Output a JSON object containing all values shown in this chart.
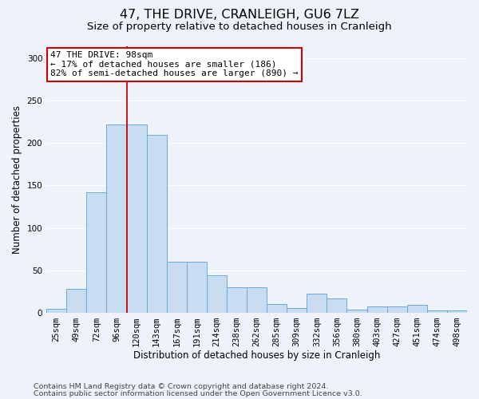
{
  "title": "47, THE DRIVE, CRANLEIGH, GU6 7LZ",
  "subtitle": "Size of property relative to detached houses in Cranleigh",
  "xlabel": "Distribution of detached houses by size in Cranleigh",
  "ylabel": "Number of detached properties",
  "categories": [
    "25sqm",
    "49sqm",
    "72sqm",
    "96sqm",
    "120sqm",
    "143sqm",
    "167sqm",
    "191sqm",
    "214sqm",
    "238sqm",
    "262sqm",
    "285sqm",
    "309sqm",
    "332sqm",
    "356sqm",
    "380sqm",
    "403sqm",
    "427sqm",
    "451sqm",
    "474sqm",
    "498sqm"
  ],
  "values": [
    4,
    28,
    142,
    222,
    222,
    210,
    60,
    60,
    44,
    30,
    30,
    10,
    5,
    22,
    17,
    3,
    7,
    7,
    9,
    2,
    2
  ],
  "bar_color": "#c9ddf2",
  "bar_edge_color": "#6aabd6",
  "bar_edge_width": 0.7,
  "vline_x": 3.5,
  "vline_color": "#cc0000",
  "annotation_text": "47 THE DRIVE: 98sqm\n← 17% of detached houses are smaller (186)\n82% of semi-detached houses are larger (890) →",
  "annotation_box_color": "#ffffff",
  "annotation_box_edge_color": "#cc0000",
  "ylim": [
    0,
    315
  ],
  "yticks": [
    0,
    50,
    100,
    150,
    200,
    250,
    300
  ],
  "footer_line1": "Contains HM Land Registry data © Crown copyright and database right 2024.",
  "footer_line2": "Contains public sector information licensed under the Open Government Licence v3.0.",
  "bg_color": "#edf2fb",
  "plot_bg_color": "#edf2fb",
  "grid_color": "#ffffff",
  "title_fontsize": 11.5,
  "subtitle_fontsize": 9.5,
  "label_fontsize": 8.5,
  "tick_fontsize": 7.5,
  "annotation_fontsize": 8,
  "footer_fontsize": 6.8
}
